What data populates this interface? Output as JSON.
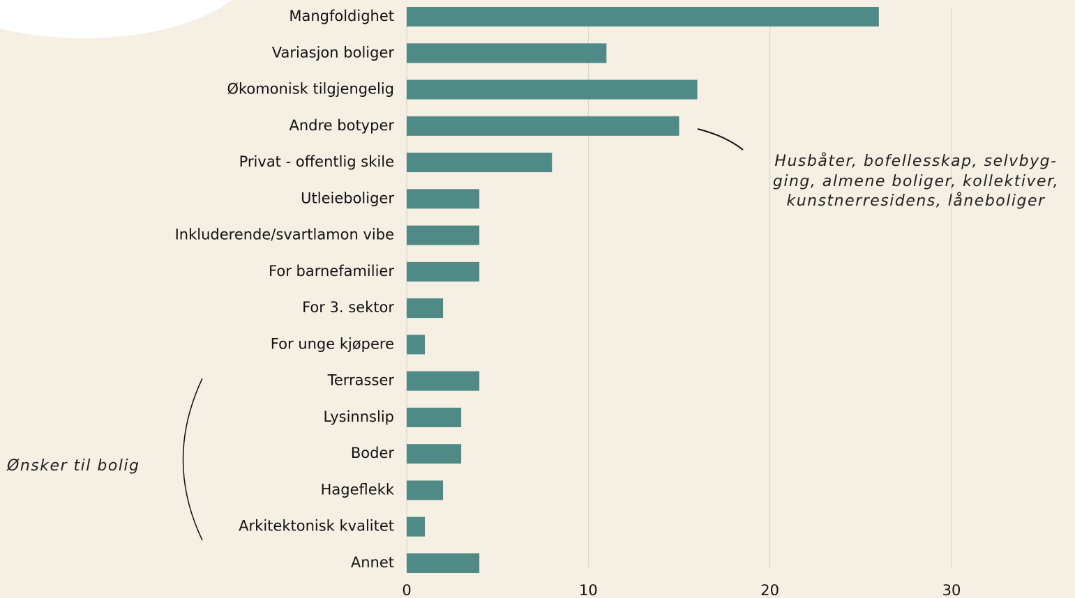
{
  "chart_data": {
    "type": "bar",
    "orientation": "horizontal",
    "categories": [
      "Mangfoldighet",
      "Variasjon boliger",
      "Økomonisk tilgjengelig",
      "Andre botyper",
      "Privat - offentlig skile",
      "Utleieboliger",
      "Inkluderende/svartlamon vibe",
      "For barnefamilier",
      "For 3. sektor",
      "For unge kjøpere",
      "Terrasser",
      "Lysinnslip",
      "Boder",
      "Hageflekk",
      "Arkitektonisk kvalitet",
      "Annet"
    ],
    "values": [
      26,
      11,
      16,
      15,
      8,
      4,
      4,
      4,
      2,
      1,
      4,
      3,
      3,
      2,
      1,
      4
    ],
    "color": "#4f8a87",
    "xlim": [
      0,
      36.8
    ],
    "xticks": [
      0,
      10,
      20,
      30
    ],
    "grid": true,
    "annotations": [
      {
        "lines": [
          "Husbåter, bofellesskap, selvbyg-",
          "ging, almene boliger, kollektiver,",
          "kunstnerresidens, låneboliger"
        ]
      },
      {
        "lines": [
          "Ønsker til bolig"
        ]
      }
    ]
  }
}
